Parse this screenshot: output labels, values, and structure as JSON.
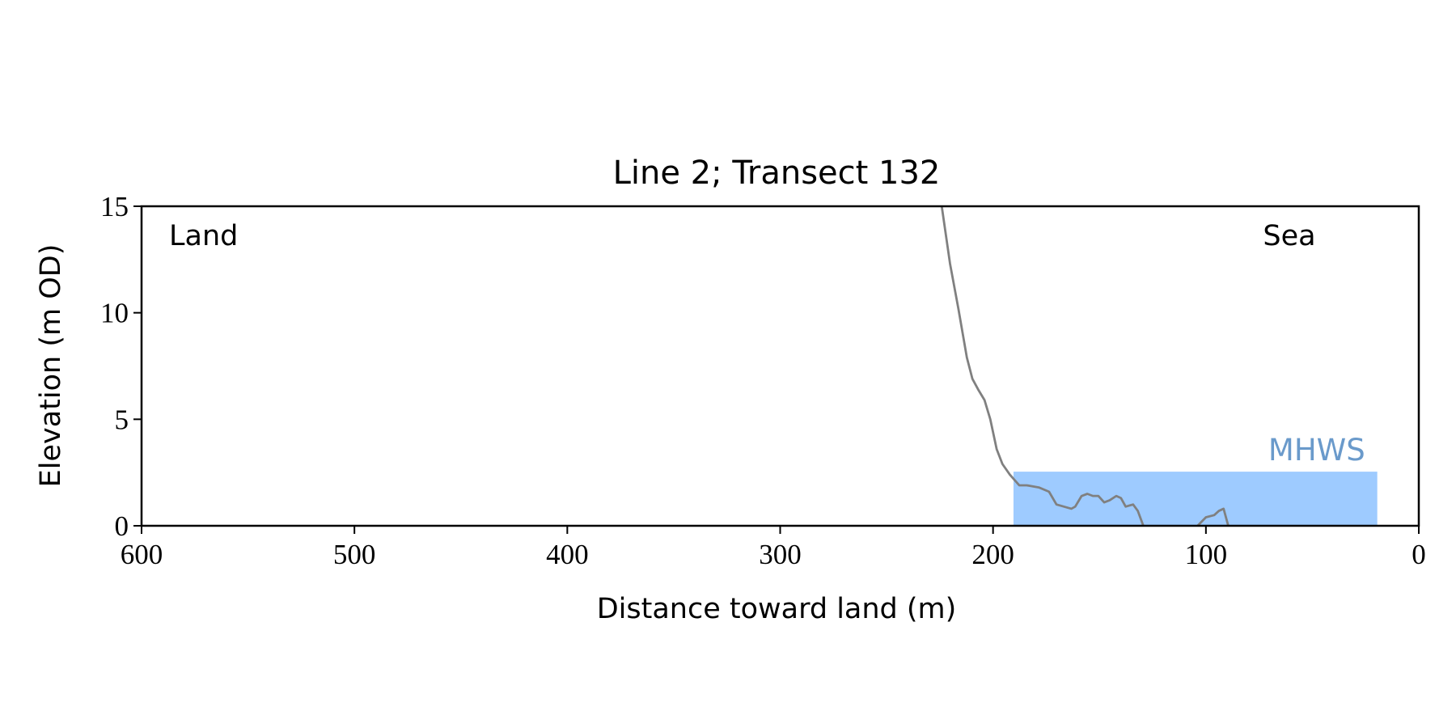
{
  "chart_data": {
    "type": "line",
    "title": "Line 2; Transect 132",
    "xlabel": "Distance toward land (m)",
    "ylabel": "Elevation (m OD)",
    "x": [
      224.1,
      220.2,
      216.3,
      212.3,
      209.7,
      207.0,
      204.0,
      201.3,
      198.3,
      195.6,
      192.1,
      187.7,
      184.2,
      178.5,
      173.7,
      170.2,
      163.2,
      161.4,
      158.4,
      155.7,
      153.1,
      150.5,
      147.8,
      145.2,
      142.1,
      139.9,
      137.7,
      134.2,
      132.0,
      129.4,
      116.0,
      103.9,
      100.0,
      96.1,
      93.9,
      91.7,
      89.5,
      84.0,
      78.9
    ],
    "series": [
      {
        "color": "#808080",
        "values": [
          15,
          12.3,
          10.2,
          7.9,
          6.9,
          6.4,
          5.9,
          5.0,
          3.6,
          2.9,
          2.4,
          1.9,
          1.9,
          1.8,
          1.6,
          1.0,
          0.8,
          0.9,
          1.4,
          1.5,
          1.4,
          1.4,
          1.1,
          1.2,
          1.4,
          1.3,
          0.9,
          1.0,
          0.7,
          0,
          null,
          0,
          0.4,
          0.5,
          0.7,
          0.8,
          0,
          null,
          0.1
        ]
      }
    ],
    "band": {
      "label": "MHWS",
      "x": [
        190.4,
        19.5
      ],
      "value": 2.54,
      "color": "#9ecbff",
      "label_color": "#6a9acb"
    },
    "annotations": [
      "Land",
      "Sea"
    ],
    "xlim": [
      600,
      0
    ],
    "ylim": [
      0,
      15
    ],
    "xticks": [
      600,
      500,
      400,
      300,
      200,
      100,
      0
    ],
    "yticks": [
      0,
      5,
      10,
      15
    ]
  }
}
